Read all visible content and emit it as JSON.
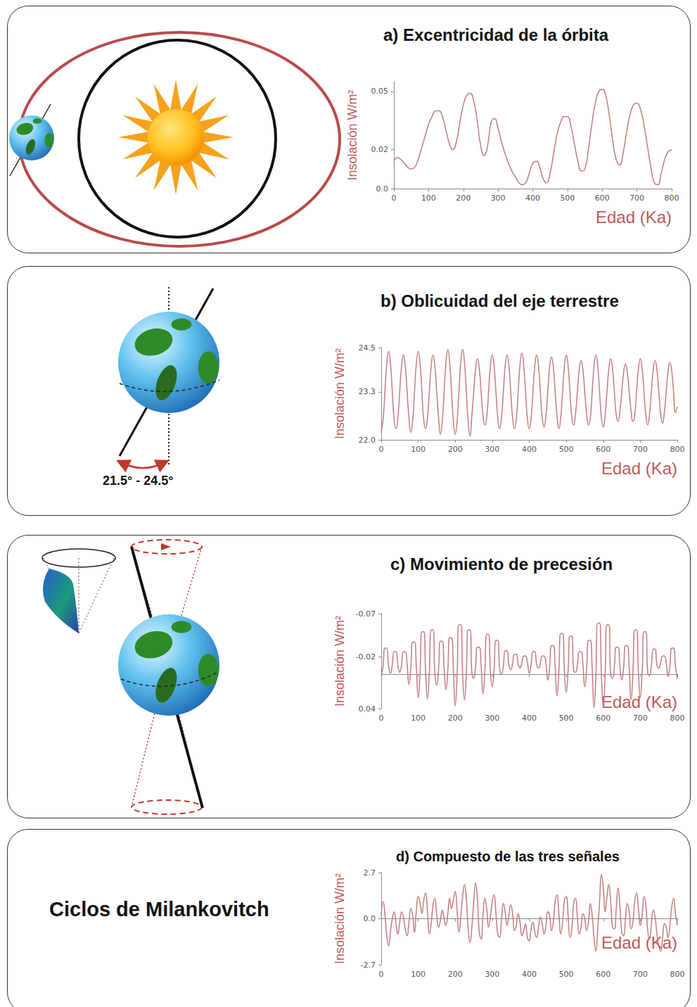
{
  "chart_data": [
    {
      "type": "line",
      "title": "a) Excentricidad de la órbita",
      "x_label": "Edad (Ka)",
      "y_label": "Insolación W/m²",
      "color": "#c47c7c",
      "marker": "none",
      "grid": false,
      "xlim": [
        0,
        800
      ],
      "xticks": [
        0,
        100,
        200,
        300,
        400,
        500,
        600,
        700,
        800
      ],
      "ylim": [
        0,
        0.055
      ],
      "yticks": [
        {
          "value": 0,
          "label": "0.0"
        },
        0.02,
        0.05
      ],
      "x": [
        0,
        10,
        20,
        30,
        40,
        50,
        60,
        70,
        80,
        90,
        100,
        110,
        120,
        130,
        140,
        150,
        160,
        170,
        180,
        190,
        200,
        210,
        220,
        230,
        240,
        250,
        260,
        270,
        280,
        290,
        300,
        310,
        320,
        330,
        340,
        350,
        360,
        370,
        380,
        390,
        400,
        410,
        420,
        430,
        440,
        450,
        460,
        470,
        480,
        490,
        500,
        510,
        520,
        530,
        540,
        550,
        560,
        570,
        580,
        590,
        600,
        610,
        620,
        630,
        640,
        650,
        660,
        670,
        680,
        690,
        700,
        710,
        720,
        730,
        740,
        750,
        760,
        770,
        780,
        790,
        800
      ],
      "values": [
        0.014,
        0.016,
        0.015,
        0.013,
        0.011,
        0.01,
        0.011,
        0.015,
        0.021,
        0.027,
        0.033,
        0.037,
        0.04,
        0.04,
        0.037,
        0.03,
        0.023,
        0.02,
        0.024,
        0.034,
        0.043,
        0.048,
        0.049,
        0.045,
        0.035,
        0.022,
        0.017,
        0.022,
        0.034,
        0.036,
        0.031,
        0.024,
        0.018,
        0.013,
        0.009,
        0.006,
        0.003,
        0.002,
        0.003,
        0.008,
        0.013,
        0.014,
        0.011,
        0.005,
        0.003,
        0.008,
        0.018,
        0.028,
        0.034,
        0.037,
        0.037,
        0.032,
        0.023,
        0.014,
        0.009,
        0.01,
        0.02,
        0.033,
        0.044,
        0.05,
        0.051,
        0.048,
        0.038,
        0.025,
        0.015,
        0.012,
        0.018,
        0.029,
        0.038,
        0.043,
        0.044,
        0.041,
        0.033,
        0.022,
        0.011,
        0.003,
        0.002,
        0.008,
        0.015,
        0.019,
        0.02
      ]
    },
    {
      "type": "line",
      "title": "b) Oblicuidad del eje terrestre",
      "x_label": "Edad (Ka)",
      "y_label": "Insolación W/m²",
      "color": "#c47c7c",
      "marker": "none",
      "grid": false,
      "annotations": [
        "21.5° - 24.5°"
      ],
      "xlim": [
        0,
        800
      ],
      "xticks": [
        0,
        100,
        200,
        300,
        400,
        500,
        600,
        700,
        800
      ],
      "ylim": [
        22.0,
        24.5
      ],
      "yticks": [
        {
          "value": 22.0,
          "label": "22.0"
        },
        23.3,
        24.5
      ],
      "x": [
        0,
        5,
        10,
        15,
        20,
        25,
        30,
        35,
        40,
        45,
        50,
        55,
        60,
        65,
        70,
        75,
        80,
        85,
        90,
        95,
        100,
        105,
        110,
        115,
        120,
        125,
        130,
        135,
        140,
        145,
        150,
        155,
        160,
        165,
        170,
        175,
        180,
        185,
        190,
        195,
        200,
        205,
        210,
        215,
        220,
        225,
        230,
        235,
        240,
        245,
        250,
        255,
        260,
        265,
        270,
        275,
        280,
        285,
        290,
        295,
        300,
        305,
        310,
        315,
        320,
        325,
        330,
        335,
        340,
        345,
        350,
        355,
        360,
        365,
        370,
        375,
        380,
        385,
        390,
        395,
        400,
        405,
        410,
        415,
        420,
        425,
        430,
        435,
        440,
        445,
        450,
        455,
        460,
        465,
        470,
        475,
        480,
        485,
        490,
        495,
        500,
        505,
        510,
        515,
        520,
        525,
        530,
        535,
        540,
        545,
        550,
        555,
        560,
        565,
        570,
        575,
        580,
        585,
        590,
        595,
        600,
        605,
        610,
        615,
        620,
        625,
        630,
        635,
        640,
        645,
        650,
        655,
        660,
        665,
        670,
        675,
        680,
        685,
        690,
        695,
        700,
        705,
        710,
        715,
        720,
        725,
        730,
        735,
        740,
        745,
        750,
        755,
        760,
        765,
        770,
        775,
        780,
        785,
        790,
        795,
        800
      ],
      "values": [
        22.2,
        22.53,
        23.3,
        24.07,
        24.4,
        24.07,
        23.3,
        22.53,
        22.3,
        22.6,
        23.3,
        24.0,
        24.3,
        24.0,
        23.3,
        22.6,
        22.2,
        22.53,
        23.3,
        24.07,
        24.4,
        24.07,
        23.3,
        22.53,
        22.3,
        22.6,
        23.3,
        24.0,
        24.3,
        24.0,
        23.3,
        22.6,
        22.15,
        22.5,
        23.3,
        24.1,
        24.45,
        24.1,
        23.3,
        22.5,
        22.15,
        22.5,
        23.3,
        24.1,
        24.45,
        24.1,
        23.3,
        22.5,
        22.1,
        22.67,
        23.3,
        23.93,
        24.2,
        23.93,
        23.3,
        22.67,
        22.4,
        22.6,
        23.3,
        24.0,
        24.3,
        24.0,
        23.3,
        22.6,
        22.3,
        22.6,
        23.3,
        24.0,
        24.3,
        24.0,
        23.3,
        22.6,
        22.3,
        22.57,
        23.3,
        24.03,
        24.35,
        24.03,
        23.3,
        22.57,
        22.3,
        22.6,
        23.3,
        24.0,
        24.3,
        24.0,
        23.3,
        22.6,
        22.35,
        22.64,
        23.3,
        23.97,
        24.25,
        23.97,
        23.3,
        22.64,
        22.3,
        22.6,
        23.3,
        24.0,
        24.3,
        24.0,
        23.3,
        22.6,
        22.4,
        22.7,
        23.3,
        23.9,
        24.15,
        23.9,
        23.3,
        22.7,
        22.4,
        22.6,
        23.3,
        24.0,
        24.3,
        24.0,
        23.3,
        22.6,
        22.35,
        22.67,
        23.3,
        23.93,
        24.2,
        23.93,
        23.3,
        22.67,
        22.5,
        22.78,
        23.3,
        23.83,
        24.05,
        23.83,
        23.3,
        22.78,
        22.5,
        22.67,
        23.3,
        23.93,
        24.2,
        23.93,
        23.3,
        22.67,
        22.4,
        22.7,
        23.3,
        23.9,
        24.15,
        23.9,
        23.3,
        22.7,
        22.45,
        22.74,
        23.3,
        23.86,
        24.1,
        23.86,
        23.3,
        22.74,
        22.9
      ]
    },
    {
      "type": "line",
      "title": "c) Movimiento de precesión",
      "x_label": "Edad (Ka)",
      "y_label": "Insolación W/m²",
      "color": "#c47c7c",
      "marker": "none",
      "grid": false,
      "xlim": [
        0,
        800
      ],
      "xticks": [
        0,
        100,
        200,
        300,
        400,
        500,
        600,
        700,
        800
      ],
      "ylim": [
        0.04,
        -0.07
      ],
      "yticks": [
        -0.07,
        -0.02,
        0.04
      ],
      "x": [
        0,
        5,
        10,
        15,
        20,
        25,
        30,
        35,
        40,
        45,
        50,
        55,
        60,
        65,
        70,
        75,
        80,
        85,
        90,
        95,
        100,
        105,
        110,
        115,
        120,
        125,
        130,
        135,
        140,
        145,
        150,
        155,
        160,
        165,
        170,
        175,
        180,
        185,
        190,
        195,
        200,
        205,
        210,
        215,
        220,
        225,
        230,
        235,
        240,
        245,
        250,
        255,
        260,
        265,
        270,
        275,
        280,
        285,
        290,
        295,
        300,
        305,
        310,
        315,
        320,
        325,
        330,
        335,
        340,
        345,
        350,
        355,
        360,
        365,
        370,
        375,
        380,
        385,
        390,
        395,
        400,
        405,
        410,
        415,
        420,
        425,
        430,
        435,
        440,
        445,
        450,
        455,
        460,
        465,
        470,
        475,
        480,
        485,
        490,
        495,
        500,
        505,
        510,
        515,
        520,
        525,
        530,
        535,
        540,
        545,
        550,
        555,
        560,
        565,
        570,
        575,
        580,
        585,
        590,
        595,
        600,
        605,
        610,
        615,
        620,
        625,
        630,
        635,
        640,
        645,
        650,
        655,
        660,
        665,
        670,
        675,
        680,
        685,
        690,
        695,
        700,
        705,
        710,
        715,
        720,
        725,
        730,
        735,
        740,
        745,
        750,
        755,
        760,
        765,
        770,
        775,
        780,
        785,
        790,
        795,
        800
      ],
      "values": [
        0.003,
        -0.009,
        -0.03,
        -0.03,
        -0.009,
        -0.001,
        -0.011,
        -0.026,
        -0.026,
        -0.011,
        -0.002,
        -0.011,
        -0.026,
        -0.026,
        -0.011,
        0.012,
        -0.007,
        -0.037,
        -0.037,
        -0.007,
        0.027,
        -0.002,
        -0.049,
        -0.049,
        -0.002,
        0.029,
        -0.001,
        -0.051,
        -0.051,
        -0.001,
        0.013,
        -0.006,
        -0.038,
        -0.038,
        -0.006,
        0.018,
        -0.005,
        -0.042,
        -0.042,
        -0.005,
        0.037,
        0.001,
        -0.057,
        -0.057,
        0.001,
        0.03,
        -0.001,
        -0.051,
        -0.051,
        -0.001,
        0.005,
        -0.009,
        -0.031,
        -0.031,
        -0.009,
        0.023,
        -0.003,
        -0.046,
        -0.046,
        -0.003,
        0.015,
        -0.006,
        -0.039,
        -0.039,
        -0.006,
        0.0,
        -0.01,
        -0.027,
        -0.027,
        -0.01,
        -0.005,
        -0.012,
        -0.023,
        -0.023,
        -0.012,
        -0.007,
        -0.013,
        -0.021,
        -0.021,
        -0.013,
        -0.001,
        -0.011,
        -0.026,
        -0.026,
        -0.011,
        -0.007,
        -0.013,
        -0.021,
        -0.021,
        -0.013,
        0.007,
        -0.008,
        -0.033,
        -0.033,
        -0.008,
        0.025,
        -0.003,
        -0.047,
        -0.047,
        -0.003,
        0.021,
        -0.004,
        -0.044,
        -0.044,
        -0.004,
        -0.002,
        -0.011,
        -0.026,
        -0.026,
        -0.011,
        0.015,
        -0.006,
        -0.039,
        -0.039,
        -0.006,
        0.039,
        0.002,
        -0.059,
        -0.059,
        0.002,
        0.037,
        0.001,
        -0.057,
        -0.057,
        0.001,
        0.005,
        -0.009,
        -0.031,
        -0.031,
        -0.009,
        0.007,
        -0.008,
        -0.033,
        -0.033,
        -0.008,
        0.03,
        -0.001,
        -0.051,
        -0.051,
        -0.001,
        0.027,
        -0.002,
        -0.049,
        -0.049,
        -0.002,
        0.002,
        -0.01,
        -0.029,
        -0.029,
        -0.01,
        -0.007,
        -0.013,
        -0.021,
        -0.021,
        -0.013,
        0.003,
        -0.009,
        -0.03,
        -0.03,
        -0.009,
        0.005
      ]
    },
    {
      "type": "line",
      "title": "d) Compuesto de las tres señales",
      "x_label": "Edad (Ka)",
      "y_label": "Insolación W/m²",
      "color": "#c47c7c",
      "marker": "none",
      "grid": false,
      "annotations": [
        "Ciclos de Milankovitch"
      ],
      "xlim": [
        0,
        800
      ],
      "xticks": [
        0,
        100,
        200,
        300,
        400,
        500,
        600,
        700,
        800
      ],
      "ylim": [
        -2.7,
        2.7
      ],
      "yticks": [
        -2.7,
        {
          "value": 0,
          "label": "0.0"
        },
        2.7
      ],
      "x": [
        0,
        5,
        10,
        15,
        20,
        25,
        30,
        35,
        40,
        45,
        50,
        55,
        60,
        65,
        70,
        75,
        80,
        85,
        90,
        95,
        100,
        105,
        110,
        115,
        120,
        125,
        130,
        135,
        140,
        145,
        150,
        155,
        160,
        165,
        170,
        175,
        180,
        185,
        190,
        195,
        200,
        205,
        210,
        215,
        220,
        225,
        230,
        235,
        240,
        245,
        250,
        255,
        260,
        265,
        270,
        275,
        280,
        285,
        290,
        295,
        300,
        305,
        310,
        315,
        320,
        325,
        330,
        335,
        340,
        345,
        350,
        355,
        360,
        365,
        370,
        375,
        380,
        385,
        390,
        395,
        400,
        405,
        410,
        415,
        420,
        425,
        430,
        435,
        440,
        445,
        450,
        455,
        460,
        465,
        470,
        475,
        480,
        485,
        490,
        495,
        500,
        505,
        510,
        515,
        520,
        525,
        530,
        535,
        540,
        545,
        550,
        555,
        560,
        565,
        570,
        575,
        580,
        585,
        590,
        595,
        600,
        605,
        610,
        615,
        620,
        625,
        630,
        635,
        640,
        645,
        650,
        655,
        660,
        665,
        670,
        675,
        680,
        685,
        690,
        695,
        700,
        705,
        710,
        715,
        720,
        725,
        730,
        735,
        740,
        745,
        750,
        755,
        760,
        765,
        770,
        775,
        780,
        785,
        790,
        795,
        800
      ],
      "values": [
        0.2,
        1.0,
        0.3,
        -1.0,
        -1.6,
        -0.8,
        0.0,
        0.4,
        -0.3,
        -0.9,
        -0.2,
        0.4,
        0.1,
        -0.6,
        -1.0,
        -0.2,
        0.6,
        0.2,
        -0.8,
        0.5,
        1.3,
        0.9,
        0.3,
        1.1,
        1.5,
        0.4,
        -0.9,
        -0.3,
        0.8,
        1.2,
        0.2,
        -0.5,
        -0.1,
        0.5,
        0.0,
        -0.4,
        0.3,
        1.2,
        0.6,
        1.1,
        1.6,
        0.5,
        -0.8,
        0.1,
        1.3,
        2.0,
        1.2,
        -0.6,
        -1.4,
        -0.5,
        1.0,
        2.1,
        1.1,
        -0.8,
        -1.2,
        0.2,
        1.2,
        0.6,
        -0.5,
        0.1,
        1.0,
        1.4,
        0.3,
        -0.9,
        -1.1,
        0.0,
        0.9,
        0.4,
        -0.4,
        0.2,
        0.8,
        0.3,
        -0.7,
        -0.4,
        0.3,
        -0.2,
        -1.0,
        -0.7,
        -0.3,
        -1.1,
        -1.3,
        -0.6,
        -0.2,
        -0.8,
        -1.1,
        -0.5,
        0.1,
        -0.3,
        -0.9,
        -0.4,
        0.4,
        0.2,
        -0.7,
        -0.2,
        1.0,
        1.4,
        0.3,
        -0.9,
        -0.2,
        1.1,
        1.3,
        0.2,
        -1.1,
        -0.6,
        0.9,
        1.2,
        0.1,
        -0.9,
        -0.5,
        0.3,
        0.0,
        -0.7,
        -0.2,
        0.9,
        0.2,
        -1.1,
        -1.9,
        -0.6,
        1.0,
        2.6,
        1.8,
        0.4,
        1.3,
        2.0,
        1.0,
        -0.5,
        -0.6,
        0.6,
        1.8,
        0.7,
        -0.8,
        -1.0,
        0.0,
        0.9,
        0.4,
        -0.6,
        -0.2,
        1.0,
        1.5,
        0.6,
        -0.4,
        0.2,
        1.3,
        0.8,
        -0.7,
        -1.2,
        -0.3,
        0.5,
        0.1,
        -0.9,
        -1.6,
        -1.9,
        -1.2,
        -0.3,
        -0.5,
        -1.1,
        -0.4,
        0.7,
        1.2,
        0.3,
        -0.4
      ]
    }
  ]
}
